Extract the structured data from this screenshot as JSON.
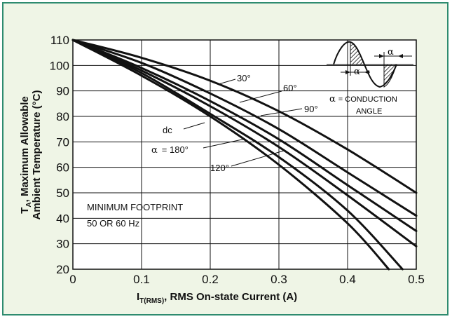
{
  "chart_data": {
    "type": "line",
    "xlabel_main": "I",
    "xlabel_sub": "T(RMS)",
    "xlabel_rest": ", RMS On-state Current (A)",
    "ylabel_line1_main": "T",
    "ylabel_line1_sub": "A",
    "ylabel_line1_rest": ", Maximum Allowable",
    "ylabel_line2": "Ambient Temperature (°C)",
    "xlim": [
      0,
      0.5
    ],
    "ylim": [
      20,
      110
    ],
    "xticks": [
      "0",
      "0.1",
      "0.2",
      "0.3",
      "0.4",
      "0.5"
    ],
    "yticks": [
      "20",
      "30",
      "40",
      "50",
      "60",
      "70",
      "80",
      "90",
      "100",
      "110"
    ],
    "grid": true,
    "series": [
      {
        "name": "30°",
        "x": [
          0,
          0.1,
          0.2,
          0.3,
          0.4,
          0.5
        ],
        "y": [
          110,
          103,
          94,
          82,
          67,
          50
        ]
      },
      {
        "name": "60°",
        "x": [
          0,
          0.1,
          0.2,
          0.3,
          0.4,
          0.5
        ],
        "y": [
          110,
          101,
          89,
          75,
          58,
          41
        ]
      },
      {
        "name": "90°",
        "x": [
          0,
          0.1,
          0.2,
          0.3,
          0.4,
          0.5
        ],
        "y": [
          110,
          99,
          86,
          71,
          53,
          35
        ]
      },
      {
        "name": "dc",
        "x": [
          0,
          0.1,
          0.2,
          0.3,
          0.4,
          0.5
        ],
        "y": [
          110,
          98,
          84,
          68,
          49,
          29
        ]
      },
      {
        "name": "α = 180°",
        "x": [
          0,
          0.1,
          0.2,
          0.3,
          0.4,
          0.48
        ],
        "y": [
          110,
          97,
          81,
          64,
          43,
          20
        ]
      },
      {
        "name": "120°",
        "x": [
          0,
          0.1,
          0.2,
          0.3,
          0.4,
          0.46
        ],
        "y": [
          110,
          96,
          80,
          61,
          38,
          20
        ]
      }
    ],
    "annotations": {
      "label_30": "30°",
      "label_60": "60°",
      "label_90": "90°",
      "label_dc": "dc",
      "label_180_alpha": "α",
      "label_180_rest": "= 180°",
      "label_120": "120°",
      "footprint_line1": "MINIMUM FOOTPRINT",
      "footprint_line2": "50 OR 60 Hz",
      "inset_alpha": "α",
      "inset_eq_alpha": "α",
      "inset_eq_rest": "=  CONDUCTION",
      "inset_angle": "ANGLE"
    }
  }
}
